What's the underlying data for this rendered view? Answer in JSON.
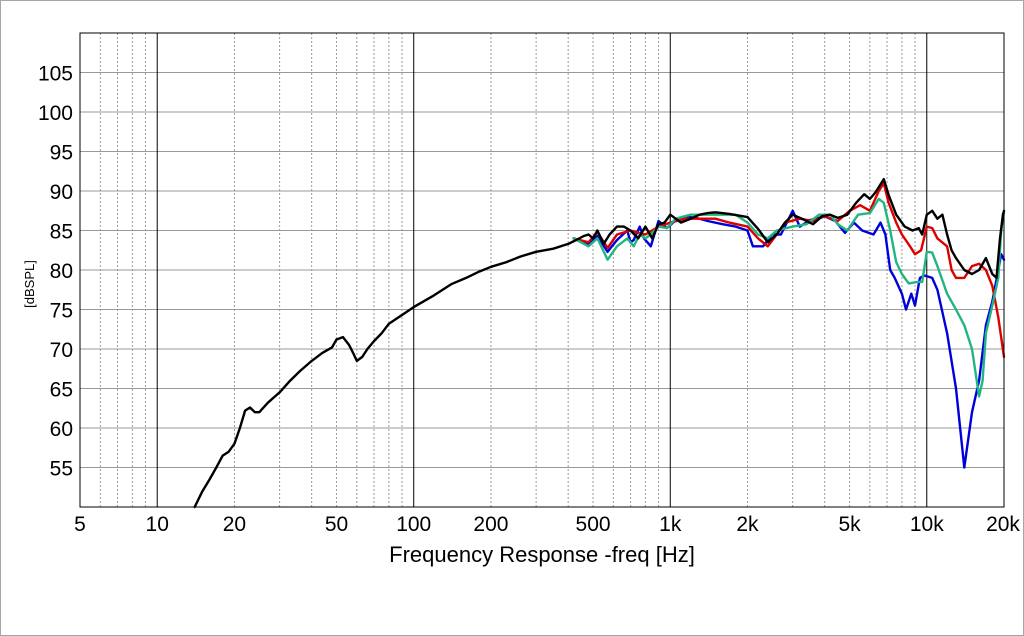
{
  "chart_data": {
    "type": "line",
    "title": "",
    "xlabel": "Frequency Response -freq [Hz]",
    "ylabel": "[dBSPL]",
    "x_scale": "log",
    "xlim": [
      5,
      20000
    ],
    "ylim": [
      50,
      110
    ],
    "grid": true,
    "legend": "none",
    "x_ticks": [
      {
        "value": 5,
        "label": "5"
      },
      {
        "value": 10,
        "label": "10"
      },
      {
        "value": 20,
        "label": "20"
      },
      {
        "value": 50,
        "label": "50"
      },
      {
        "value": 100,
        "label": "100"
      },
      {
        "value": 200,
        "label": "200"
      },
      {
        "value": 500,
        "label": "500"
      },
      {
        "value": 1000,
        "label": "1k"
      },
      {
        "value": 2000,
        "label": "2k"
      },
      {
        "value": 5000,
        "label": "5k"
      },
      {
        "value": 10000,
        "label": "10k"
      },
      {
        "value": 20000,
        "label": "20k"
      }
    ],
    "y_ticks": [
      {
        "value": 55,
        "label": "55"
      },
      {
        "value": 60,
        "label": "60"
      },
      {
        "value": 65,
        "label": "65"
      },
      {
        "value": 70,
        "label": "70"
      },
      {
        "value": 75,
        "label": "75"
      },
      {
        "value": 80,
        "label": "80"
      },
      {
        "value": 85,
        "label": "85"
      },
      {
        "value": 90,
        "label": "90"
      },
      {
        "value": 95,
        "label": "95"
      },
      {
        "value": 100,
        "label": "100"
      },
      {
        "value": 105,
        "label": "105"
      }
    ],
    "series": [
      {
        "color": "#0000dd",
        "points": [
          [
            420,
            84
          ],
          [
            480,
            83.3
          ],
          [
            520,
            84.3
          ],
          [
            570,
            82.3
          ],
          [
            620,
            83.8
          ],
          [
            680,
            85
          ],
          [
            700,
            83.5
          ],
          [
            720,
            83.8
          ],
          [
            760,
            85.5
          ],
          [
            790,
            84
          ],
          [
            840,
            83
          ],
          [
            900,
            86.2
          ],
          [
            970,
            85.3
          ],
          [
            1050,
            86.3
          ],
          [
            1150,
            86.8
          ],
          [
            1300,
            86.5
          ],
          [
            1400,
            86.2
          ],
          [
            1600,
            85.8
          ],
          [
            1800,
            85.5
          ],
          [
            2000,
            85
          ],
          [
            2100,
            83
          ],
          [
            2300,
            83
          ],
          [
            2500,
            84.5
          ],
          [
            2700,
            84.5
          ],
          [
            3000,
            87.5
          ],
          [
            3200,
            85.5
          ],
          [
            3500,
            86.3
          ],
          [
            4000,
            86.8
          ],
          [
            4400,
            86.2
          ],
          [
            4800,
            84.7
          ],
          [
            5200,
            86
          ],
          [
            5600,
            85
          ],
          [
            6200,
            84.5
          ],
          [
            6600,
            86
          ],
          [
            6900,
            84.5
          ],
          [
            7200,
            80
          ],
          [
            7500,
            79
          ],
          [
            8000,
            77
          ],
          [
            8300,
            75
          ],
          [
            8700,
            77
          ],
          [
            9000,
            75.5
          ],
          [
            9400,
            79
          ],
          [
            9800,
            79.3
          ],
          [
            10500,
            79
          ],
          [
            11000,
            77.5
          ],
          [
            12000,
            72
          ],
          [
            13000,
            65
          ],
          [
            14000,
            55
          ],
          [
            15000,
            62
          ],
          [
            16000,
            66
          ],
          [
            17000,
            73
          ],
          [
            18000,
            76
          ],
          [
            19000,
            80
          ],
          [
            19500,
            82
          ],
          [
            20000,
            81.3
          ]
        ]
      },
      {
        "color": "#dd0000",
        "points": [
          [
            420,
            84
          ],
          [
            480,
            83.5
          ],
          [
            520,
            84.8
          ],
          [
            570,
            82.8
          ],
          [
            620,
            84.5
          ],
          [
            700,
            85
          ],
          [
            800,
            84.5
          ],
          [
            900,
            85.5
          ],
          [
            1000,
            86
          ],
          [
            1150,
            86.5
          ],
          [
            1300,
            86.5
          ],
          [
            1500,
            86.5
          ],
          [
            1700,
            86
          ],
          [
            2000,
            85.5
          ],
          [
            2200,
            84
          ],
          [
            2400,
            83
          ],
          [
            2600,
            84.5
          ],
          [
            2800,
            86
          ],
          [
            3200,
            86.5
          ],
          [
            3600,
            86.2
          ],
          [
            4000,
            86.8
          ],
          [
            4500,
            86.2
          ],
          [
            5000,
            87.5
          ],
          [
            5500,
            88.2
          ],
          [
            6000,
            87.5
          ],
          [
            6500,
            90
          ],
          [
            6800,
            91
          ],
          [
            7100,
            88.5
          ],
          [
            7600,
            86
          ],
          [
            8000,
            84.5
          ],
          [
            8600,
            83
          ],
          [
            9000,
            82
          ],
          [
            9500,
            82.5
          ],
          [
            10000,
            85.5
          ],
          [
            10500,
            85.3
          ],
          [
            11000,
            84
          ],
          [
            12000,
            83
          ],
          [
            12500,
            80
          ],
          [
            13000,
            79
          ],
          [
            14000,
            79
          ],
          [
            15000,
            80.5
          ],
          [
            16000,
            80.8
          ],
          [
            17000,
            80
          ],
          [
            18000,
            78
          ],
          [
            19000,
            74
          ],
          [
            20000,
            69
          ]
        ]
      },
      {
        "color": "#22b584",
        "points": [
          [
            420,
            84
          ],
          [
            480,
            83
          ],
          [
            520,
            84
          ],
          [
            570,
            81.3
          ],
          [
            620,
            83
          ],
          [
            680,
            84
          ],
          [
            720,
            83
          ],
          [
            760,
            84.5
          ],
          [
            800,
            84
          ],
          [
            840,
            84.5
          ],
          [
            900,
            85.5
          ],
          [
            970,
            85.3
          ],
          [
            1050,
            86.5
          ],
          [
            1200,
            87
          ],
          [
            1350,
            87
          ],
          [
            1500,
            87
          ],
          [
            1800,
            87
          ],
          [
            2000,
            86
          ],
          [
            2200,
            84.5
          ],
          [
            2400,
            84
          ],
          [
            2600,
            85
          ],
          [
            3000,
            85.5
          ],
          [
            3400,
            85.8
          ],
          [
            3800,
            87
          ],
          [
            4200,
            87
          ],
          [
            4500,
            85.8
          ],
          [
            4900,
            85
          ],
          [
            5400,
            87
          ],
          [
            6000,
            87.2
          ],
          [
            6500,
            89
          ],
          [
            6800,
            88.5
          ],
          [
            7200,
            85
          ],
          [
            7600,
            81
          ],
          [
            8000,
            79.5
          ],
          [
            8500,
            78.3
          ],
          [
            9200,
            78.5
          ],
          [
            9600,
            78.5
          ],
          [
            10000,
            82.3
          ],
          [
            10500,
            82.2
          ],
          [
            11000,
            80.5
          ],
          [
            12000,
            77
          ],
          [
            13000,
            75
          ],
          [
            14000,
            73
          ],
          [
            15000,
            70
          ],
          [
            16000,
            64
          ],
          [
            16500,
            66
          ],
          [
            17000,
            72
          ],
          [
            18000,
            75.5
          ],
          [
            19000,
            79
          ],
          [
            19500,
            85
          ],
          [
            20000,
            87.3
          ]
        ]
      },
      {
        "color": "#000000",
        "points": [
          [
            14,
            50
          ],
          [
            15,
            52
          ],
          [
            16,
            53.5
          ],
          [
            17,
            55
          ],
          [
            18,
            56.5
          ],
          [
            19,
            57
          ],
          [
            20,
            58
          ],
          [
            21,
            60
          ],
          [
            22,
            62.2
          ],
          [
            23,
            62.6
          ],
          [
            24,
            62
          ],
          [
            25,
            62
          ],
          [
            27,
            63.2
          ],
          [
            30,
            64.5
          ],
          [
            33,
            66
          ],
          [
            36,
            67.2
          ],
          [
            40,
            68.5
          ],
          [
            44,
            69.5
          ],
          [
            48,
            70.2
          ],
          [
            50,
            71.2
          ],
          [
            53,
            71.5
          ],
          [
            56,
            70.5
          ],
          [
            58,
            69.5
          ],
          [
            60,
            68.5
          ],
          [
            63,
            69
          ],
          [
            66,
            70
          ],
          [
            70,
            71
          ],
          [
            75,
            72
          ],
          [
            80,
            73.2
          ],
          [
            90,
            74.3
          ],
          [
            100,
            75.3
          ],
          [
            120,
            76.8
          ],
          [
            140,
            78.2
          ],
          [
            160,
            79
          ],
          [
            180,
            79.8
          ],
          [
            200,
            80.4
          ],
          [
            230,
            81
          ],
          [
            260,
            81.7
          ],
          [
            300,
            82.3
          ],
          [
            350,
            82.7
          ],
          [
            400,
            83.3
          ],
          [
            430,
            83.8
          ],
          [
            460,
            84.3
          ],
          [
            480,
            84.5
          ],
          [
            500,
            84
          ],
          [
            520,
            85
          ],
          [
            550,
            83.3
          ],
          [
            580,
            84.5
          ],
          [
            620,
            85.5
          ],
          [
            660,
            85.5
          ],
          [
            700,
            85
          ],
          [
            750,
            84
          ],
          [
            800,
            85.5
          ],
          [
            850,
            84
          ],
          [
            900,
            85.8
          ],
          [
            950,
            86
          ],
          [
            1000,
            87
          ],
          [
            1050,
            86.5
          ],
          [
            1100,
            86
          ],
          [
            1200,
            86.5
          ],
          [
            1300,
            87
          ],
          [
            1400,
            87.2
          ],
          [
            1500,
            87.3
          ],
          [
            1700,
            87.1
          ],
          [
            2000,
            86.7
          ],
          [
            2200,
            85.2
          ],
          [
            2400,
            83.5
          ],
          [
            2600,
            84.5
          ],
          [
            2800,
            86
          ],
          [
            3000,
            87
          ],
          [
            3300,
            86.4
          ],
          [
            3600,
            85.8
          ],
          [
            3900,
            86.8
          ],
          [
            4200,
            87
          ],
          [
            4500,
            86.6
          ],
          [
            4900,
            87
          ],
          [
            5300,
            88.5
          ],
          [
            5700,
            89.6
          ],
          [
            6000,
            89
          ],
          [
            6300,
            89.8
          ],
          [
            6800,
            91.5
          ],
          [
            7100,
            89.5
          ],
          [
            7600,
            87
          ],
          [
            8200,
            85.5
          ],
          [
            8800,
            85
          ],
          [
            9300,
            85.3
          ],
          [
            9600,
            84.5
          ],
          [
            10000,
            87
          ],
          [
            10500,
            87.5
          ],
          [
            11000,
            86.5
          ],
          [
            11500,
            87
          ],
          [
            12000,
            84.5
          ],
          [
            12500,
            82.5
          ],
          [
            13000,
            81.5
          ],
          [
            14000,
            80
          ],
          [
            15000,
            79.5
          ],
          [
            16000,
            80
          ],
          [
            17000,
            81.5
          ],
          [
            18000,
            79.5
          ],
          [
            18700,
            79
          ],
          [
            19300,
            84
          ],
          [
            19800,
            87
          ],
          [
            20000,
            87.5
          ]
        ]
      }
    ]
  }
}
